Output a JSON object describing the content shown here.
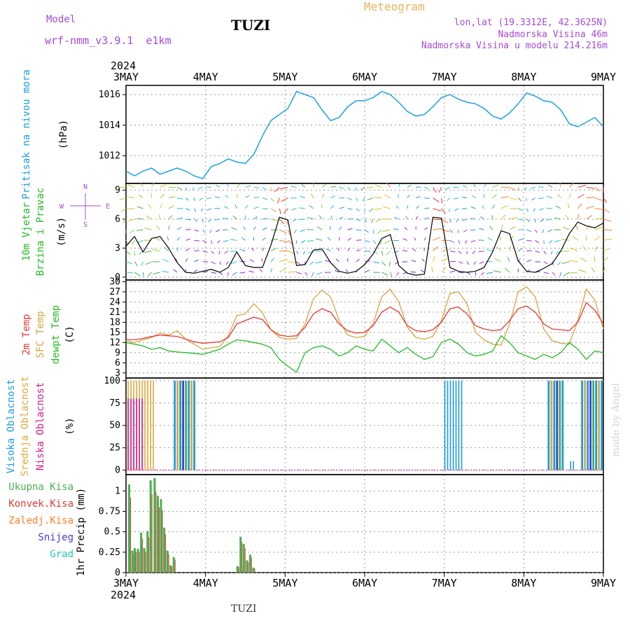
{
  "header": {
    "model_label": "Model",
    "model_name": "wrf-nmm_v3.9.1  e1km",
    "station": "TUZI",
    "meteogram_title": "Meteogram",
    "lonlat": "lon,lat (19.3312E, 42.3625N)",
    "elevation": "Nadmorska Visina 46m",
    "model_elevation": "Nadmorska Visina u modelu 214.216m",
    "footer_station": "TUZI",
    "credit": "made by Angel"
  },
  "colors": {
    "pressure": "#1ba1e2",
    "temp2m": "#e53935",
    "sfc_temp": "#d9a441",
    "dewpoint": "#22bb22",
    "model_label": "#a64bd6",
    "meteogram_title": "#e8b45a",
    "high_cloud": "#1e9be0",
    "mid_cloud": "#e0a83a",
    "low_cloud": "#d81b8a",
    "total_precip": "#4caf50",
    "conv_precip": "#e53935",
    "frozen_precip": "#ff7f27",
    "snow": "#3f3fd6",
    "hail": "#26c6b6"
  },
  "chart_data": {
    "type": "line",
    "x_axis": {
      "year": "2024",
      "dates": [
        "3MAY",
        "4MAY",
        "5MAY",
        "6MAY",
        "7MAY",
        "8MAY",
        "9MAY"
      ]
    },
    "panels": [
      {
        "id": "pressure",
        "labels": [
          "Pritisak na nivou mora",
          "(hPa)"
        ],
        "yticks": [
          "1012",
          "1014",
          "1016"
        ],
        "ylim": [
          1010.2,
          1016.6
        ],
        "series": [
          {
            "color_key": "pressure",
            "values": [
              1011.0,
              1010.7,
              1011.0,
              1011.2,
              1010.8,
              1011.0,
              1011.2,
              1011.0,
              1010.7,
              1010.5,
              1011.3,
              1011.5,
              1011.8,
              1011.6,
              1011.5,
              1012.1,
              1013.3,
              1014.3,
              1014.7,
              1015.1,
              1016.2,
              1016.0,
              1015.8,
              1015.0,
              1014.3,
              1014.5,
              1015.2,
              1015.6,
              1015.6,
              1015.8,
              1016.2,
              1016.0,
              1015.5,
              1014.9,
              1014.6,
              1014.7,
              1015.2,
              1015.8,
              1016.0,
              1015.7,
              1015.5,
              1015.4,
              1015.1,
              1014.6,
              1014.4,
              1014.8,
              1015.4,
              1016.1,
              1015.9,
              1015.6,
              1015.5,
              1015.0,
              1014.1,
              1013.9,
              1014.2,
              1014.5,
              1013.9
            ]
          }
        ]
      },
      {
        "id": "wind",
        "labels": [
          "10m Vjetar",
          "Brzina i Pravac",
          "(m/s)"
        ],
        "compass": [
          "N",
          "S",
          "W",
          "E"
        ],
        "yticks": [
          "0",
          "3",
          "6",
          "9"
        ],
        "ylim": [
          -0.3,
          9.7
        ],
        "series": [
          {
            "color_key": "wind_speed",
            "values": [
              3.2,
              4.2,
              2.6,
              4.0,
              4.2,
              3.0,
              1.5,
              0.5,
              0.4,
              0.6,
              0.8,
              0.5,
              1.0,
              2.6,
              1.2,
              1.0,
              1.0,
              3.3,
              6.2,
              5.9,
              1.2,
              1.3,
              2.8,
              2.9,
              1.5,
              0.6,
              0.4,
              0.6,
              1.3,
              2.4,
              4.0,
              4.4,
              1.2,
              0.4,
              0.2,
              0.3,
              6.2,
              6.1,
              1.0,
              0.6,
              0.5,
              0.6,
              1.0,
              2.6,
              4.8,
              4.5,
              1.7,
              0.6,
              0.5,
              0.9,
              1.4,
              2.7,
              4.5,
              5.7,
              5.3,
              5.1,
              5.6
            ]
          }
        ]
      },
      {
        "id": "temperature",
        "labels": [
          "2m Temp",
          "SFC Temp",
          "dewpt Temp",
          "(C)"
        ],
        "yticks": [
          "3",
          "6",
          "9",
          "12",
          "15",
          "18",
          "21",
          "24",
          "27",
          "30"
        ],
        "ylim": [
          1.5,
          30.5
        ],
        "series": [
          {
            "name": "SFC Temp",
            "color_key": "sfc_temp",
            "values": [
              12.5,
              12.0,
              12.8,
              13.5,
              14.8,
              14.2,
              15.5,
              13.0,
              11.5,
              10.0,
              10.5,
              10.8,
              14.0,
              20.0,
              20.5,
              23.5,
              20.8,
              15.8,
              13.5,
              13.0,
              13.2,
              17.5,
              25.0,
              27.5,
              25.5,
              18.5,
              14.2,
              13.5,
              13.8,
              17.8,
              25.5,
              27.8,
              24.0,
              16.5,
              13.5,
              13.0,
              13.8,
              18.5,
              26.5,
              27.0,
              23.5,
              15.0,
              12.8,
              11.5,
              11.2,
              17.5,
              27.0,
              28.5,
              25.5,
              16.0,
              12.5,
              11.8,
              11.5,
              18.5,
              27.8,
              24.5,
              16.0
            ]
          },
          {
            "name": "2m Temp",
            "color_key": "temp2m",
            "values": [
              12.8,
              12.8,
              13.2,
              13.8,
              14.2,
              14.0,
              13.8,
              13.0,
              12.2,
              11.8,
              12.0,
              12.2,
              13.5,
              17.5,
              18.5,
              19.5,
              18.8,
              15.8,
              14.2,
              13.8,
              14.0,
              16.5,
              20.5,
              22.0,
              21.0,
              17.5,
              15.5,
              14.8,
              15.0,
              17.0,
              21.0,
              22.5,
              21.0,
              17.0,
              15.5,
              15.2,
              15.8,
              18.0,
              22.0,
              22.5,
              20.5,
              17.0,
              16.0,
              15.5,
              15.8,
              18.5,
              22.0,
              22.8,
              21.0,
              17.5,
              16.0,
              15.8,
              15.5,
              18.0,
              23.8,
              21.5,
              17.5
            ]
          },
          {
            "name": "dewpt Temp",
            "color_key": "dewpoint",
            "values": [
              12.0,
              11.5,
              11.0,
              10.0,
              10.5,
              9.5,
              9.2,
              9.0,
              8.8,
              8.5,
              9.2,
              10.0,
              11.5,
              12.8,
              12.5,
              12.0,
              11.5,
              10.5,
              7.0,
              5.0,
              3.2,
              9.0,
              10.5,
              11.0,
              10.0,
              8.0,
              9.0,
              11.0,
              10.0,
              9.5,
              13.0,
              11.0,
              9.0,
              10.5,
              8.5,
              7.0,
              7.8,
              12.0,
              13.0,
              11.5,
              9.0,
              8.0,
              8.5,
              9.5,
              14.0,
              12.0,
              9.0,
              8.0,
              7.0,
              8.5,
              7.5,
              9.0,
              12.0,
              10.0,
              7.0,
              9.5,
              9.0
            ]
          }
        ]
      },
      {
        "id": "cloud",
        "labels": [
          "Visoka Oblacnost",
          "Srednja Oblacnost",
          "Niska Oblacnost",
          "(%)"
        ],
        "yticks": [
          "0",
          "25",
          "50",
          "75",
          "100"
        ],
        "ylim": [
          -5,
          103
        ],
        "segments": [
          {
            "start": 0.02,
            "end": 0.36,
            "kind": "mid",
            "value": 100
          },
          {
            "start": 0.02,
            "end": 0.22,
            "kind": "low",
            "value": 80
          },
          {
            "start": 0.6,
            "end": 0.86,
            "kind": "mixed",
            "value": 100
          },
          {
            "start": 4.0,
            "end": 4.22,
            "kind": "high",
            "value": 100
          },
          {
            "start": 5.3,
            "end": 5.5,
            "kind": "mixed",
            "value": 100
          },
          {
            "start": 5.58,
            "end": 5.62,
            "kind": "high",
            "value": 10
          },
          {
            "start": 5.72,
            "end": 6.0,
            "kind": "mixed",
            "value": 100
          }
        ]
      },
      {
        "id": "precip",
        "labels": [
          "1hr Precip (mm)"
        ],
        "legend": [
          "Ukupna Kisa",
          "Konvek.Kisa",
          "Zaledj.Kisa",
          "Snijeg",
          "Grad"
        ],
        "yticks": [
          "0",
          "0.25",
          "0.5",
          "0.75",
          "1"
        ],
        "ylim": [
          0,
          1.2
        ],
        "series": [
          {
            "name": "Ukupna Kisa",
            "color_key": "total_precip",
            "times": [
              0.04,
              0.08,
              0.11,
              0.15,
              0.19,
              0.23,
              0.27,
              0.31,
              0.36,
              0.4,
              0.44,
              0.48,
              0.52,
              0.56,
              0.6,
              1.4,
              1.44,
              1.48,
              1.52,
              1.56,
              1.6
            ],
            "values": [
              1.08,
              0.27,
              0.3,
              0.29,
              0.49,
              0.3,
              0.51,
              1.13,
              1.16,
              0.94,
              0.9,
              0.55,
              0.27,
              0.09,
              0.19,
              0.08,
              0.44,
              0.35,
              0.15,
              0.22,
              0.06
            ]
          }
        ]
      }
    ]
  }
}
